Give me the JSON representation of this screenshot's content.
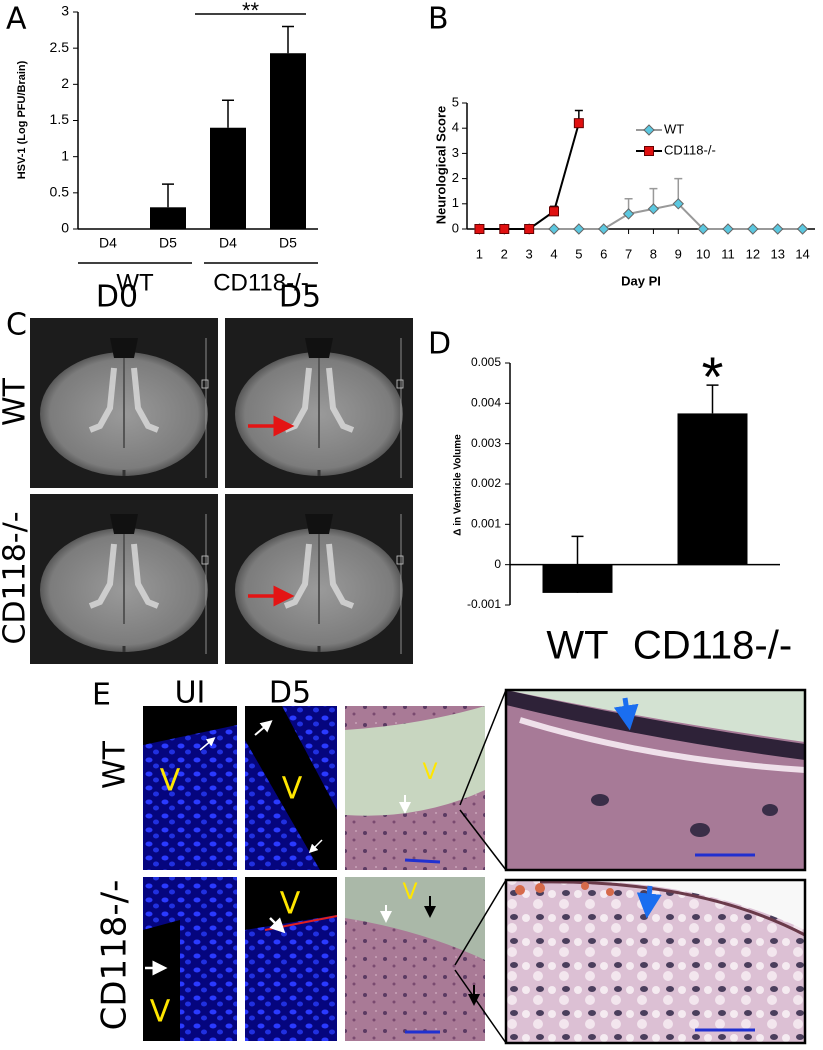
{
  "chart_data": [
    {
      "type": "bar",
      "label": "A",
      "ylabel": "HSV-1 (Log PFU/Brain)",
      "categories": [
        "D4",
        "D5",
        "D4",
        "D5"
      ],
      "groups": [
        "WT",
        "CD118-/-"
      ],
      "values": [
        0,
        0.3,
        1.4,
        2.43
      ],
      "errors": [
        null,
        0.32,
        0.38,
        0.37
      ],
      "color": "#000000",
      "ylim": [
        0,
        3
      ],
      "yticks": [
        0,
        0.5,
        1,
        1.5,
        2,
        2.5,
        3
      ],
      "annotation": "**"
    },
    {
      "type": "line",
      "label": "B",
      "ylabel": "Neurological Score",
      "xlabel": "Day PI",
      "x": [
        1,
        2,
        3,
        4,
        5,
        6,
        7,
        8,
        9,
        10,
        11,
        12,
        13,
        14
      ],
      "series": [
        {
          "name": "WT",
          "color": "#5bc8e0",
          "line_color": "#999999",
          "marker": "diamond",
          "values": [
            0,
            0,
            0,
            0,
            0,
            0,
            0.6,
            0.8,
            1,
            0,
            0,
            0,
            0,
            0
          ],
          "errors": [
            null,
            null,
            null,
            null,
            null,
            null,
            0.6,
            0.8,
            1,
            null,
            null,
            null,
            null,
            null
          ]
        },
        {
          "name": "CD118-/-",
          "color": "#e01010",
          "line_color": "#000000",
          "marker": "square",
          "values": [
            0,
            0,
            0,
            0.7,
            4.2,
            null,
            null,
            null,
            null,
            null,
            null,
            null,
            null,
            null
          ],
          "errors": [
            null,
            null,
            null,
            0.2,
            0.5,
            null,
            null,
            null,
            null,
            null,
            null,
            null,
            null,
            null
          ]
        }
      ],
      "xlim": [
        0.5,
        14.5
      ],
      "xticks": [
        1,
        2,
        3,
        4,
        5,
        6,
        7,
        8,
        9,
        10,
        11,
        12,
        13,
        14
      ],
      "ylim": [
        0,
        5
      ],
      "yticks": [
        0,
        1,
        2,
        3,
        4,
        5
      ],
      "legend": "upper-right"
    },
    {
      "type": "bar",
      "label": "D",
      "ylabel": "Δ in Ventricle Volume",
      "categories": [
        "WT",
        "CD118-/-"
      ],
      "values": [
        -0.0007,
        0.00375
      ],
      "errors": [
        0.0014,
        0.0007
      ],
      "color": "#000000",
      "ylim": [
        -0.001,
        0.005
      ],
      "yticks": [
        -0.001,
        0,
        0.001,
        0.002,
        0.003,
        0.004,
        0.005
      ],
      "annotation": "*"
    }
  ],
  "panels": {
    "C": {
      "label": "C",
      "columns": [
        "D0",
        "D5"
      ],
      "rows": [
        "WT",
        "CD118-/-"
      ]
    },
    "E": {
      "label": "E",
      "columns": [
        "UI",
        "D5"
      ],
      "rows": [
        "WT",
        "CD118-/-"
      ],
      "ventricle_labels": [
        "V",
        "V",
        "V",
        "V",
        "V",
        "V"
      ]
    }
  }
}
